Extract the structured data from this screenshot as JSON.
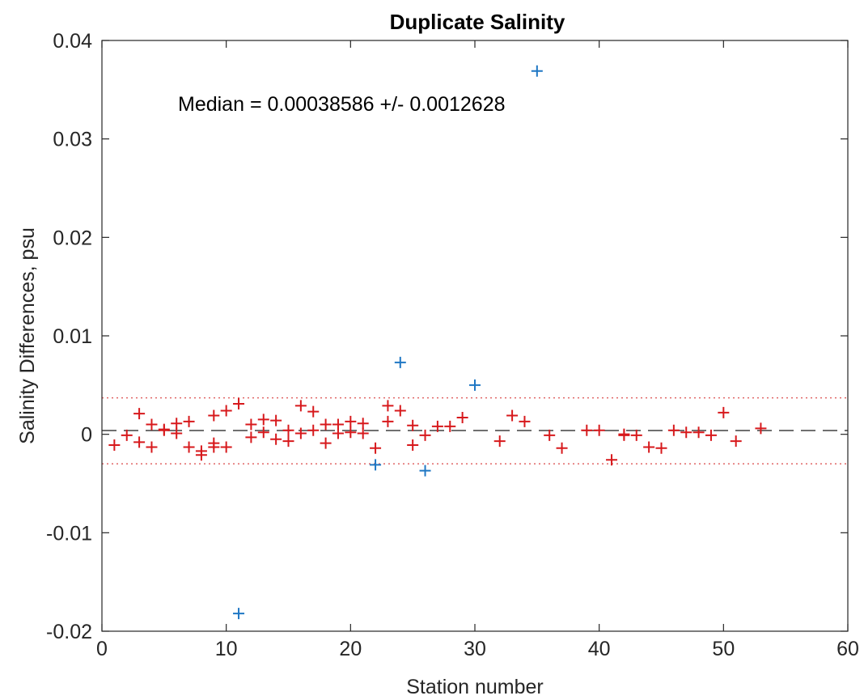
{
  "chart_data": {
    "type": "scatter",
    "title": "Duplicate Salinity",
    "xlabel": "Station number",
    "ylabel": "Salinity Differences, psu",
    "xlim": [
      0,
      60
    ],
    "ylim": [
      -0.02,
      0.04
    ],
    "xticks": [
      0,
      10,
      20,
      30,
      40,
      50,
      60
    ],
    "xtick_labels": [
      "0",
      "10",
      "20",
      "30",
      "40",
      "50",
      "60"
    ],
    "yticks": [
      -0.02,
      -0.01,
      0,
      0.01,
      0.02,
      0.03,
      0.04
    ],
    "ytick_labels": [
      "-0.02",
      "-0.01",
      "0",
      "0.01",
      "0.02",
      "0.03",
      "0.04"
    ],
    "grid": false,
    "annotation": "Median = 0.00038586 +/- 0.0012628",
    "reference_lines": {
      "median": 0.00038586,
      "upper": 0.0037,
      "lower": -0.003,
      "median_color": "#404040",
      "bounds_color": "#e06666"
    },
    "series": [
      {
        "marker": "+",
        "color": "#d7191c",
        "points": [
          [
            1,
            -0.0011
          ],
          [
            2,
            -0.0001
          ],
          [
            3,
            0.0021
          ],
          [
            3,
            -0.0008
          ],
          [
            4,
            0.001
          ],
          [
            4,
            -0.0013
          ],
          [
            5,
            0.0005
          ],
          [
            5,
            0.0004
          ],
          [
            6,
            0.0011
          ],
          [
            6,
            0.0001
          ],
          [
            7,
            0.0013
          ],
          [
            7,
            -0.0013
          ],
          [
            8,
            -0.0017
          ],
          [
            8,
            -0.0021
          ],
          [
            9,
            0.0019
          ],
          [
            9,
            -0.0009
          ],
          [
            9,
            -0.0013
          ],
          [
            10,
            0.0024
          ],
          [
            10,
            -0.0013
          ],
          [
            11,
            0.0031
          ],
          [
            12,
            0.001
          ],
          [
            12,
            -0.0003
          ],
          [
            13,
            0.0015
          ],
          [
            13,
            0.0002
          ],
          [
            14,
            0.0014
          ],
          [
            14,
            -0.0005
          ],
          [
            15,
            0.0004
          ],
          [
            15,
            -0.0007
          ],
          [
            16,
            0.0029
          ],
          [
            16,
            0.0001
          ],
          [
            17,
            0.0023
          ],
          [
            17,
            0.0004
          ],
          [
            18,
            0.001
          ],
          [
            18,
            -0.0009
          ],
          [
            19,
            0.001
          ],
          [
            19,
            0.0001
          ],
          [
            20,
            0.0013
          ],
          [
            20,
            0.0002
          ],
          [
            21,
            0.0011
          ],
          [
            21,
            0.0001
          ],
          [
            22,
            -0.0014
          ],
          [
            23,
            0.0029
          ],
          [
            23,
            0.0013
          ],
          [
            24,
            0.0024
          ],
          [
            25,
            0.0009
          ],
          [
            25,
            -0.0011
          ],
          [
            26,
            -0.0001
          ],
          [
            27,
            0.0008
          ],
          [
            28,
            0.0008
          ],
          [
            29,
            0.0017
          ],
          [
            32,
            -0.0007
          ],
          [
            33,
            0.0019
          ],
          [
            34,
            0.0013
          ],
          [
            36,
            -0.0001
          ],
          [
            37,
            -0.0014
          ],
          [
            39,
            0.0004
          ],
          [
            40,
            0.0004
          ],
          [
            41,
            -0.0026
          ],
          [
            42,
            0.0
          ],
          [
            42,
            -0.0001
          ],
          [
            43,
            -0.0001
          ],
          [
            44,
            -0.0013
          ],
          [
            45,
            -0.0014
          ],
          [
            46,
            0.0004
          ],
          [
            47,
            0.0002
          ],
          [
            48,
            0.0002
          ],
          [
            49,
            -0.0001
          ],
          [
            50,
            0.0022
          ],
          [
            51,
            -0.0007
          ],
          [
            53,
            0.0006
          ]
        ]
      },
      {
        "marker": "+",
        "color": "#1f77c4",
        "points": [
          [
            11,
            -0.0182
          ],
          [
            22,
            -0.0031
          ],
          [
            24,
            0.0073
          ],
          [
            26,
            -0.0037
          ],
          [
            30,
            0.005
          ],
          [
            35,
            0.0369
          ]
        ]
      }
    ]
  }
}
